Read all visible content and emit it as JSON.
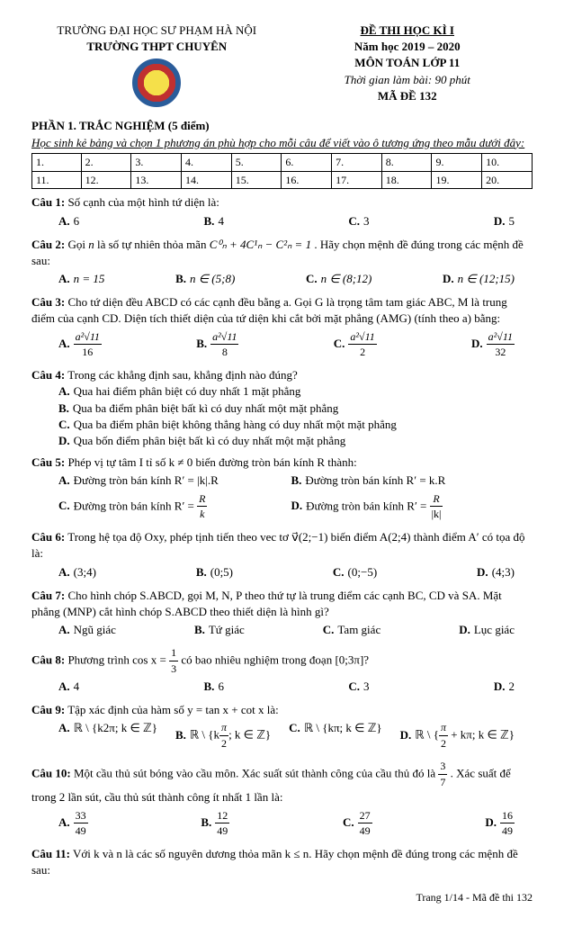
{
  "header": {
    "university": "TRƯỜNG ĐẠI HỌC SƯ PHẠM HÀ NỘI",
    "school": "TRƯỜNG THPT CHUYÊN",
    "exam_title": "ĐỀ THI HỌC KÌ I",
    "year": "Năm học 2019 – 2020",
    "subject": "MÔN TOÁN LỚP 11",
    "duration": "Thời gian làm bài: 90 phút",
    "code": "MÃ ĐỀ 132"
  },
  "section1": {
    "title": "PHẦN 1. TRẮC NGHIỆM (5 điểm)",
    "instruction": "Học sinh kẻ bảng và chọn 1 phương án phù hợp cho mỗi câu để viết vào ô tương ứng theo mẫu dưới đây:",
    "grid_row1": [
      "1.",
      "2.",
      "3.",
      "4.",
      "5.",
      "6.",
      "7.",
      "8.",
      "9.",
      "10."
    ],
    "grid_row2": [
      "11.",
      "12.",
      "13.",
      "14.",
      "15.",
      "16.",
      "17.",
      "18.",
      "19.",
      "20."
    ]
  },
  "q1": {
    "label": "Câu 1:",
    "text": "Số cạnh của một hình tứ diện là:",
    "a": "6",
    "b": "4",
    "c": "3",
    "d": "5"
  },
  "q2": {
    "label": "Câu 2:",
    "text_before": "Gọi ",
    "text_mid": " là số tự nhiên thỏa mãn ",
    "formula": "C⁰ₙ + 4C¹ₙ − C²ₙ = 1",
    "text_after": ". Hãy chọn mệnh đề đúng trong các mệnh đề sau:",
    "a": "n = 15",
    "b": "n ∈ (5;8)",
    "c": "n ∈ (8;12)",
    "d": "n ∈ (12;15)"
  },
  "q3": {
    "label": "Câu 3:",
    "text": "Cho tứ diện đều ABCD có các cạnh đều bằng a. Gọi G là trọng tâm tam giác ABC, M là trung điểm của cạnh CD. Diện tích thiết diện của tứ diện khi cắt bởi mặt phẳng (AMG) (tính theo a) bằng:",
    "a_num": "a²√11",
    "a_den": "16",
    "b_num": "a²√11",
    "b_den": "8",
    "c_num": "a²√11",
    "c_den": "2",
    "d_num": "a²√11",
    "d_den": "32"
  },
  "q4": {
    "label": "Câu 4:",
    "text": "Trong các khẳng định sau, khẳng định nào đúng?",
    "a": "Qua hai điểm phân biệt có duy nhất 1 mặt phẳng",
    "b": "Qua ba điểm phân biệt bất kì có duy nhất một mặt phẳng",
    "c": "Qua ba điểm phân biệt không thẳng hàng có duy nhất một mặt phẳng",
    "d": "Qua bốn điểm phân biệt bất kì có duy nhất một mặt phẳng"
  },
  "q5": {
    "label": "Câu 5:",
    "text": "Phép vị tự tâm I tỉ số k ≠ 0 biến đường tròn bán kính R thành:",
    "a": "Đường tròn bán kính R′ = |k|.R",
    "b": "Đường tròn bán kính R′ = k.R",
    "c_pre": "Đường tròn bán kính R′ = ",
    "c_num": "R",
    "c_den": "k",
    "d_pre": "Đường tròn bán kính R′ = ",
    "d_num": "R",
    "d_den": "|k|"
  },
  "q6": {
    "label": "Câu 6:",
    "text": "Trong hệ tọa độ Oxy, phép tịnh tiến theo vec tơ v⃗(2;−1) biến điểm A(2;4) thành điểm A′ có tọa độ là:",
    "a": "(3;4)",
    "b": "(0;5)",
    "c": "(0;−5)",
    "d": "(4;3)"
  },
  "q7": {
    "label": "Câu 7:",
    "text": "Cho hình chóp S.ABCD, gọi M, N, P theo thứ tự là trung điểm các cạnh BC, CD và SA. Mặt phẳng (MNP) cắt hình chóp S.ABCD theo thiết diện là hình gì?",
    "a": "Ngũ giác",
    "b": "Tứ giác",
    "c": "Tam giác",
    "d": "Lục giác"
  },
  "q8": {
    "label": "Câu 8:",
    "text_pre": "Phương trình cos x = ",
    "frac_num": "1",
    "frac_den": "3",
    "text_post": " có bao nhiêu nghiệm trong đoạn [0;3π]?",
    "a": "4",
    "b": "6",
    "c": "3",
    "d": "2"
  },
  "q9": {
    "label": "Câu 9:",
    "text": "Tập xác định của hàm số y = tan x + cot x là:",
    "a": "ℝ \\ {k2π; k ∈ ℤ}",
    "b_pre": "ℝ \\ {k",
    "b_num": "π",
    "b_den": "2",
    "b_post": "; k ∈ ℤ}",
    "c": "ℝ \\ {kπ; k ∈ ℤ}",
    "d_pre": "ℝ \\ {",
    "d_num": "π",
    "d_den": "2",
    "d_post": " + kπ; k ∈ ℤ}"
  },
  "q10": {
    "label": "Câu 10:",
    "text_pre": "Một cầu thủ sút bóng vào cầu môn. Xác suất sút thành công của cầu thủ đó là ",
    "frac_num": "3",
    "frac_den": "7",
    "text_post": ". Xác suất để trong 2 lần sút, cầu thủ sút thành công ít nhất 1 lần là:",
    "a_num": "33",
    "a_den": "49",
    "b_num": "12",
    "b_den": "49",
    "c_num": "27",
    "c_den": "49",
    "d_num": "16",
    "d_den": "49"
  },
  "q11": {
    "label": "Câu 11:",
    "text": "Với k và n là các số nguyên dương thỏa mãn k ≤ n. Hãy chọn mệnh đề đúng trong các mệnh đề sau:"
  },
  "footer": "Trang 1/14 - Mã đề thi 132"
}
